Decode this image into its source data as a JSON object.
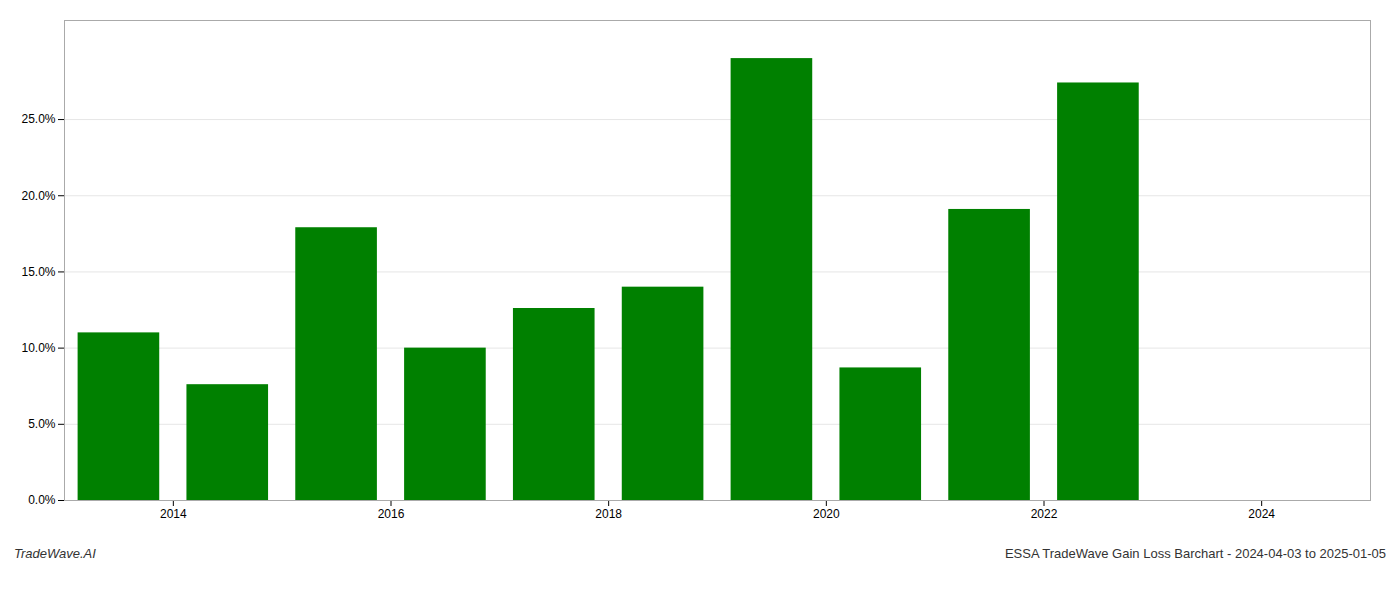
{
  "chart_data": {
    "type": "bar",
    "x": [
      2013.5,
      2014.5,
      2015.5,
      2016.5,
      2017.5,
      2018.5,
      2019.5,
      2020.5,
      2021.5,
      2022.5
    ],
    "values": [
      0.11,
      0.076,
      0.179,
      0.1,
      0.126,
      0.14,
      0.29,
      0.087,
      0.191,
      0.274
    ],
    "color": "#008000",
    "xlim": [
      2013,
      2025
    ],
    "xticks": [
      2014,
      2016,
      2018,
      2020,
      2022,
      2024
    ],
    "ylim": [
      0,
      0.315
    ],
    "yticks": [
      {
        "value": 0.0,
        "label": "0.0%"
      },
      {
        "value": 0.05,
        "label": "5.0%"
      },
      {
        "value": 0.1,
        "label": "10.0%"
      },
      {
        "value": 0.15,
        "label": "15.0%"
      },
      {
        "value": 0.2,
        "label": "20.0%"
      },
      {
        "value": 0.25,
        "label": "25.0%"
      }
    ],
    "grid": true,
    "annotations": [
      "TradeWave.AI",
      "ESSA TradeWave Gain Loss Barchart - 2024-04-03 to 2025-01-05"
    ]
  }
}
